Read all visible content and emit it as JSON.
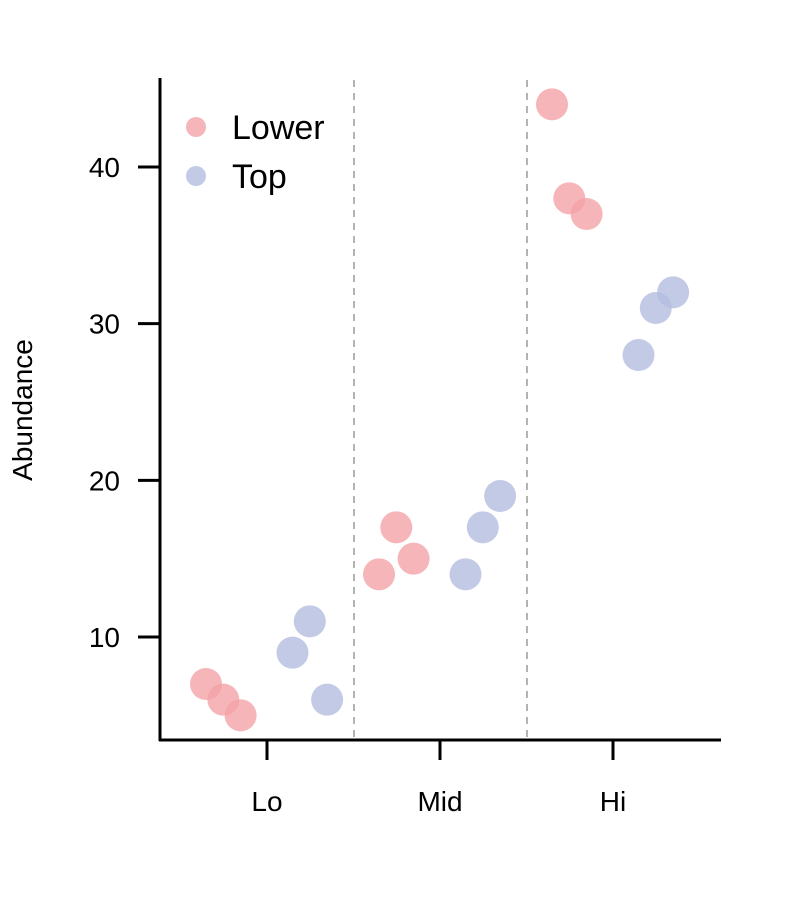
{
  "chart_data": {
    "type": "scatter",
    "ylabel": "Abundance",
    "xlabel": "",
    "categories": [
      "Lo",
      "Mid",
      "Hi"
    ],
    "yticks": [
      10,
      20,
      30,
      40
    ],
    "ylim": [
      3.5,
      46
    ],
    "legend": {
      "placement": "top-left"
    },
    "series": [
      {
        "name": "Lower",
        "color": "#f4a3a8",
        "points": [
          {
            "category": "Lo",
            "y": 7
          },
          {
            "category": "Lo",
            "y": 6
          },
          {
            "category": "Lo",
            "y": 5
          },
          {
            "category": "Mid",
            "y": 14
          },
          {
            "category": "Mid",
            "y": 17
          },
          {
            "category": "Mid",
            "y": 15
          },
          {
            "category": "Hi",
            "y": 44
          },
          {
            "category": "Hi",
            "y": 38
          },
          {
            "category": "Hi",
            "y": 37
          }
        ]
      },
      {
        "name": "Top",
        "color": "#b3bde0",
        "points": [
          {
            "category": "Lo",
            "y": 9
          },
          {
            "category": "Lo",
            "y": 11
          },
          {
            "category": "Lo",
            "y": 6
          },
          {
            "category": "Mid",
            "y": 14
          },
          {
            "category": "Mid",
            "y": 17
          },
          {
            "category": "Mid",
            "y": 19
          },
          {
            "category": "Hi",
            "y": 28
          },
          {
            "category": "Hi",
            "y": 31
          },
          {
            "category": "Hi",
            "y": 32
          }
        ]
      }
    ]
  }
}
